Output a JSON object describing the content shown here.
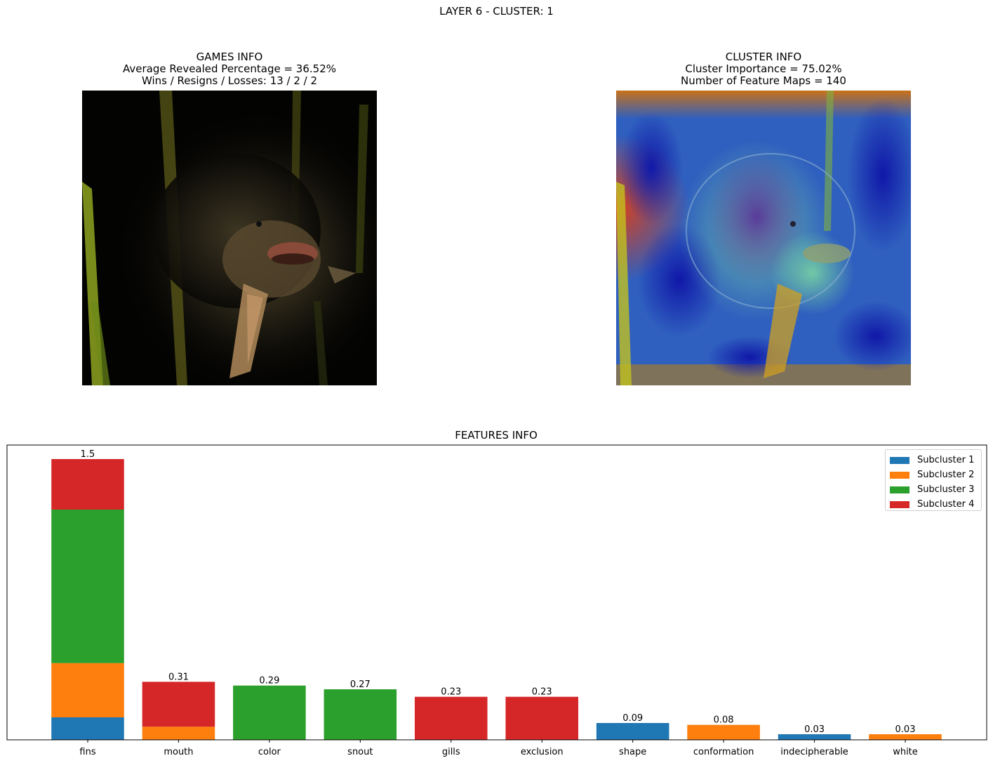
{
  "suptitle": "LAYER 6 - CLUSTER: 1",
  "games_info": {
    "title": "GAMES INFO",
    "line1": "Average Revealed Percentage = 36.52%",
    "line2": "Wins / Resigns / Losses: 13 / 2 / 2"
  },
  "cluster_info": {
    "title": "CLUSTER INFO",
    "line1": "Cluster Importance = 75.02%",
    "line2": "Number of Feature Maps = 140"
  },
  "chart_data": {
    "type": "bar",
    "stacked": true,
    "title": "FEATURES INFO",
    "xlabel": "",
    "ylabel": "",
    "ylim": [
      0,
      1.575
    ],
    "yticks_visible": false,
    "legend_position": "top-right",
    "categories": [
      "fins",
      "mouth",
      "color",
      "snout",
      "gills",
      "exclusion",
      "shape",
      "conformation",
      "indecipherable",
      "white"
    ],
    "series": [
      {
        "name": "Subcluster 1",
        "color": "#1f77b4",
        "values": [
          0.12,
          0,
          0,
          0,
          0,
          0,
          0.09,
          0,
          0.03,
          0
        ]
      },
      {
        "name": "Subcluster 2",
        "color": "#ff7f0e",
        "values": [
          0.29,
          0.07,
          0,
          0,
          0,
          0,
          0,
          0.08,
          0,
          0.03
        ]
      },
      {
        "name": "Subcluster 3",
        "color": "#2ca02c",
        "values": [
          0.82,
          0,
          0.29,
          0.27,
          0,
          0,
          0,
          0,
          0,
          0
        ]
      },
      {
        "name": "Subcluster 4",
        "color": "#d62728",
        "values": [
          0.27,
          0.24,
          0,
          0,
          0.23,
          0.23,
          0,
          0,
          0,
          0
        ]
      }
    ],
    "totals": [
      "1.5",
      "0.31",
      "0.29",
      "0.27",
      "0.23",
      "0.23",
      "0.09",
      "0.08",
      "0.03",
      "0.03"
    ]
  }
}
